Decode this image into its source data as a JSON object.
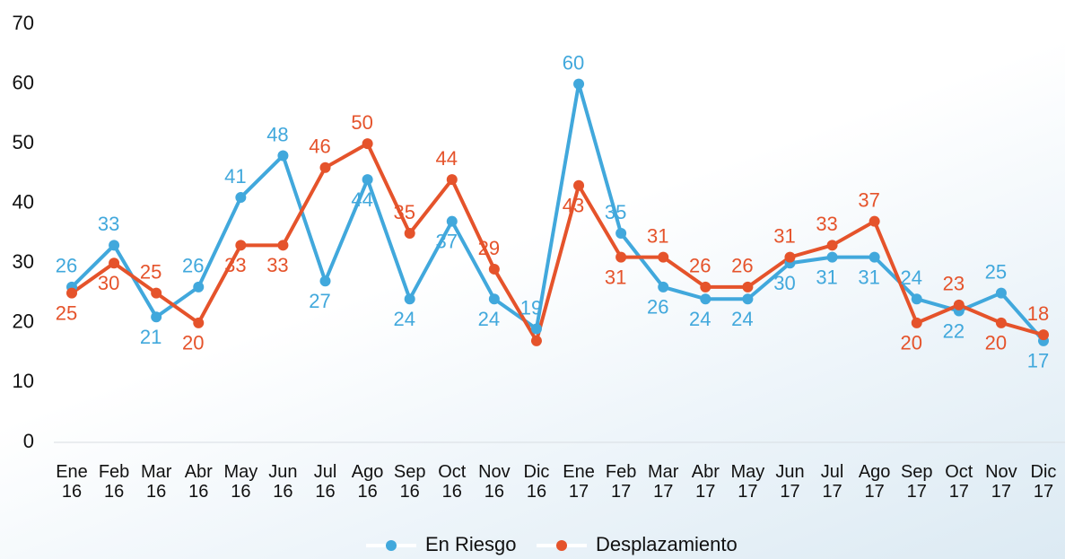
{
  "chart_data": {
    "type": "line",
    "categories": [
      "Ene 16",
      "Feb 16",
      "Mar 16",
      "Abr 16",
      "May 16",
      "Jun 16",
      "Jul 16",
      "Ago 16",
      "Sep 16",
      "Oct 16",
      "Nov 16",
      "Dic 16",
      "Ene 17",
      "Feb 17",
      "Mar 17",
      "Abr 17",
      "May 17",
      "Jun 17",
      "Jul 17",
      "Ago 17",
      "Sep 17",
      "Oct 17",
      "Nov 17",
      "Dic 17"
    ],
    "series": [
      {
        "name": "En Riesgo",
        "color": "#41a8dc",
        "values": [
          26,
          33,
          21,
          26,
          41,
          48,
          27,
          44,
          24,
          37,
          24,
          19,
          60,
          35,
          26,
          24,
          24,
          30,
          31,
          31,
          24,
          22,
          25,
          17
        ]
      },
      {
        "name": "Desplazamiento",
        "color": "#e5532b",
        "values": [
          25,
          30,
          25,
          20,
          33,
          33,
          46,
          50,
          35,
          44,
          29,
          17,
          43,
          31,
          31,
          26,
          26,
          31,
          33,
          37,
          20,
          23,
          20,
          18
        ],
        "value_labels": [
          "25",
          "30",
          "25",
          "20",
          "33",
          "33",
          "46",
          "50",
          "35",
          "44",
          "29",
          null,
          "43",
          "31",
          "31",
          "26",
          "26",
          "31",
          "33",
          "37",
          "20",
          "23",
          "20",
          "18"
        ]
      }
    ],
    "ylim": [
      0,
      70
    ],
    "yticks": [
      0,
      10,
      20,
      30,
      40,
      50,
      60,
      70
    ],
    "grid": false,
    "legend": "bottom"
  }
}
